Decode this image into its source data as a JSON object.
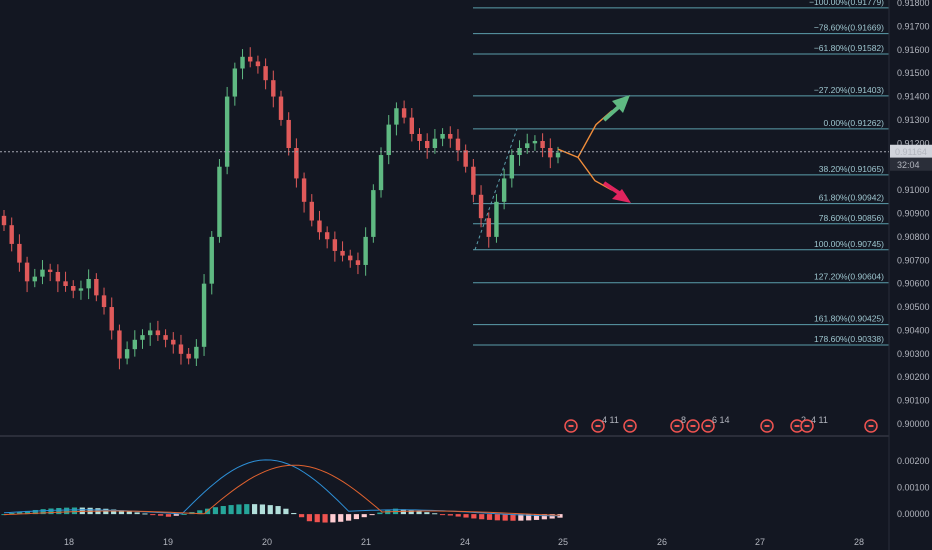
{
  "chart_data": {
    "type": "candlestick",
    "title": "",
    "colors": {
      "background": "#131722",
      "up": "#5fb982",
      "down": "#e05a5a",
      "fib_line": "#5b9eab",
      "fib_label": "#9ec6cf",
      "macd_line": "#2d8fd6",
      "signal_line": "#e0622f",
      "hist_up": "#26a69a",
      "hist_up_light": "#b2dfdb",
      "hist_down": "#ef5350",
      "hist_down_light": "#ffcdd2",
      "crosshair": "#a3a6af",
      "projection": "#f08d3a",
      "arrow_up": "#5fb982",
      "arrow_down": "#e0245e"
    },
    "price_axis": {
      "ylim": [
        0.8998,
        0.918
      ],
      "ticks": [
        "0.91800",
        "0.91700",
        "0.91600",
        "0.91500",
        "0.91400",
        "0.91300",
        "0.91200",
        "0.91100",
        "0.91000",
        "0.90900",
        "0.90800",
        "0.90700",
        "0.90600",
        "0.90500",
        "0.90400",
        "0.90300",
        "0.90200",
        "0.90100",
        "0.90000"
      ],
      "current_price": "0.91164",
      "countdown": "32:04"
    },
    "time_axis": {
      "labels": [
        "18",
        "19",
        "20",
        "21",
        "24",
        "25",
        "26",
        "27",
        "28"
      ]
    },
    "fibonacci": [
      {
        "label": "−100.00%(0.91779)",
        "value": 0.91779
      },
      {
        "label": "−78.60%(0.91669)",
        "value": 0.91669
      },
      {
        "label": "−61.80%(0.91582)",
        "value": 0.91582
      },
      {
        "label": "−27.20%(0.91403)",
        "value": 0.91403
      },
      {
        "label": "0.00%(0.91262)",
        "value": 0.91262
      },
      {
        "label": "38.20%(0.91065)",
        "value": 0.91065
      },
      {
        "label": "61.80%(0.90942)",
        "value": 0.90942
      },
      {
        "label": "78.60%(0.90856)",
        "value": 0.90856
      },
      {
        "label": "100.00%(0.90745)",
        "value": 0.90745
      },
      {
        "label": "127.20%(0.90604)",
        "value": 0.90604
      },
      {
        "label": "161.80%(0.90425)",
        "value": 0.90425
      },
      {
        "label": "178.60%(0.90338)",
        "value": 0.90338
      }
    ],
    "macd_axis": {
      "ticks": [
        "0.00200",
        "0.00100",
        "0.00000"
      ]
    },
    "event_markers": [
      "",
      "4 11",
      "",
      "8",
      "",
      "6 14",
      "",
      "2",
      "4 11",
      ""
    ],
    "closes": [
      0.9085,
      0.9077,
      0.9069,
      0.9061,
      0.9063,
      0.9066,
      0.9065,
      0.9061,
      0.9059,
      0.9057,
      0.9058,
      0.9062,
      0.9055,
      0.905,
      0.904,
      0.9028,
      0.9032,
      0.9036,
      0.9038,
      0.904,
      0.9038,
      0.9036,
      0.9034,
      0.903,
      0.9028,
      0.9033,
      0.906,
      0.908,
      0.911,
      0.914,
      0.9152,
      0.9157,
      0.9155,
      0.9153,
      0.9147,
      0.914,
      0.913,
      0.9118,
      0.9105,
      0.9095,
      0.9087,
      0.9082,
      0.9079,
      0.9074,
      0.9072,
      0.907,
      0.9068,
      0.908,
      0.91,
      0.9115,
      0.9128,
      0.9135,
      0.9131,
      0.9124,
      0.9121,
      0.9118,
      0.9122,
      0.9124,
      0.9122,
      0.9117,
      0.911,
      0.9098,
      0.9088,
      0.908,
      0.9095,
      0.9105,
      0.9115,
      0.9118,
      0.912,
      0.9121,
      0.9118,
      0.9114,
      0.9116
    ]
  }
}
